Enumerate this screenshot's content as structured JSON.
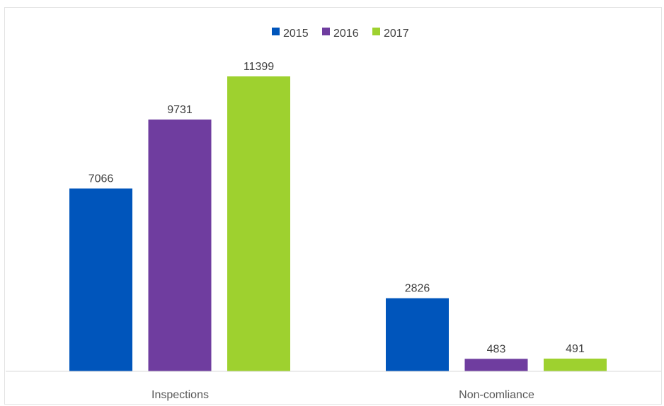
{
  "chart_data": {
    "type": "bar",
    "title": "",
    "xlabel": "",
    "ylabel": "",
    "categories": [
      "Inspections",
      "Non-comliance"
    ],
    "series": [
      {
        "name": "2015",
        "values": [
          7066,
          2826
        ],
        "color": "#0055bb"
      },
      {
        "name": "2016",
        "values": [
          9731,
          483
        ],
        "color": "#6f3d9f"
      },
      {
        "name": "2017",
        "values": [
          11399,
          491
        ],
        "color": "#9ed12f"
      }
    ],
    "ylim": [
      0,
      11399
    ],
    "grid": false,
    "legend_position": "top-center",
    "data_labels": true
  }
}
